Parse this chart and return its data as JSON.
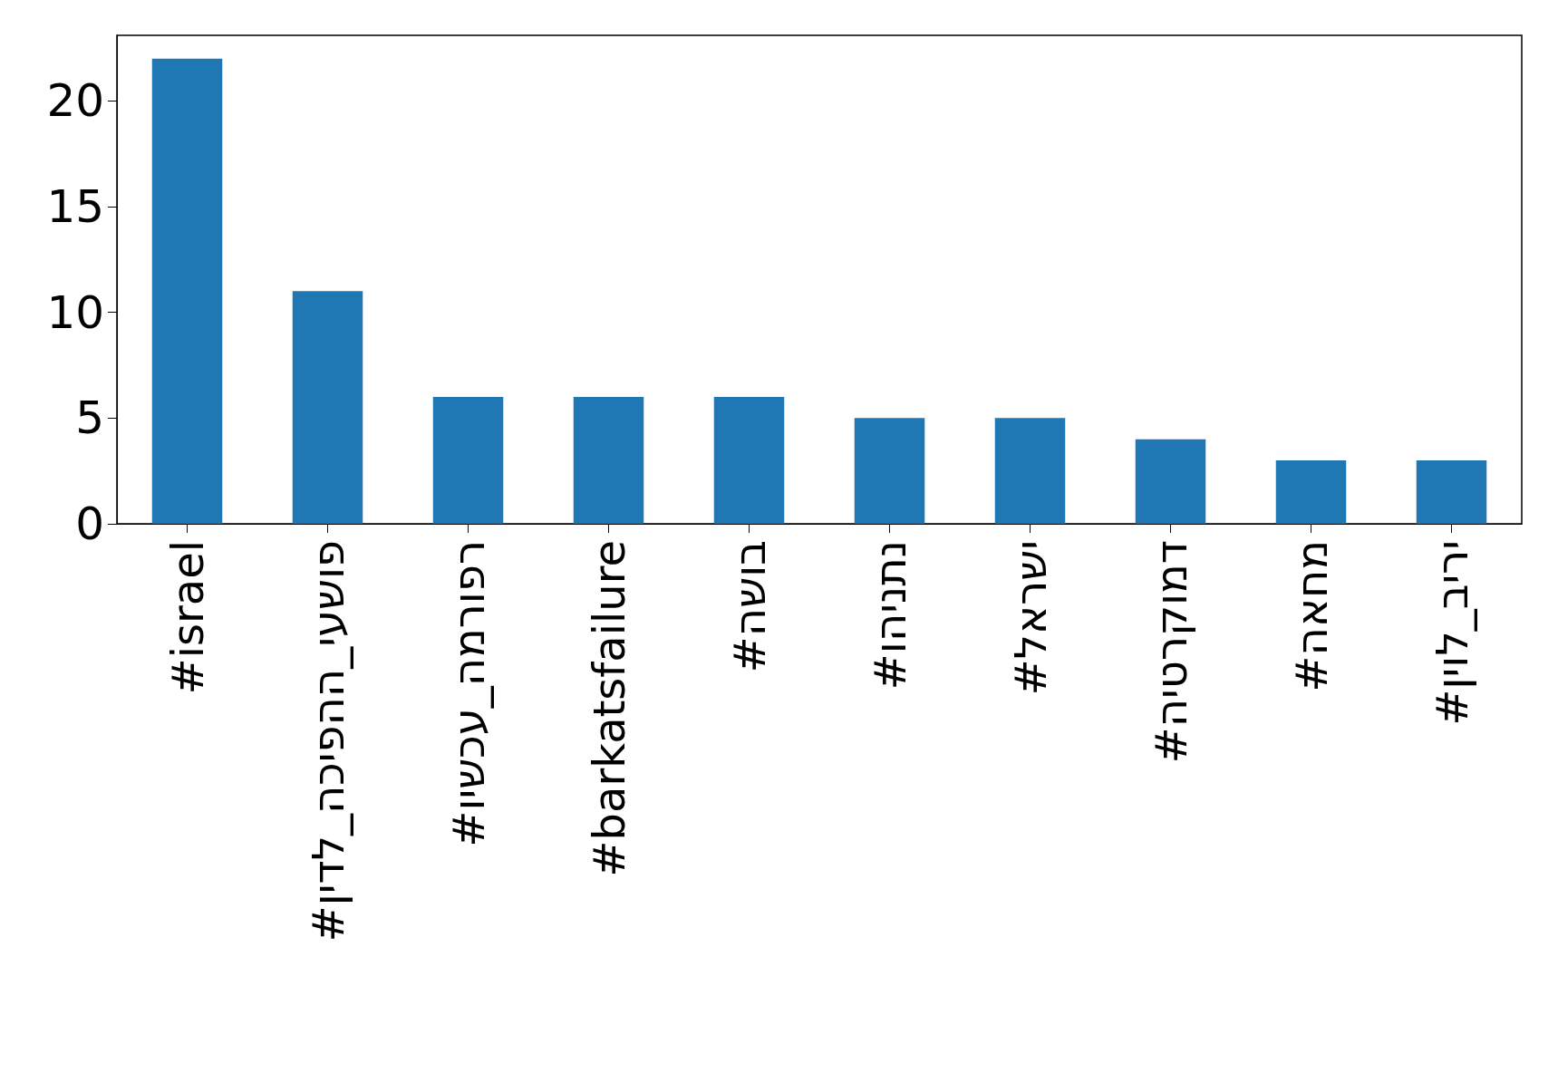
{
  "chart_data": {
    "type": "bar",
    "categories": [
      "#israel",
      "#פושעי_ההפיכה_לדין",
      "#רפורמה_עכשיו",
      "#barkatsfailure",
      "#בושה",
      "#נתניהו",
      "#ישראל",
      "#דמוקרטיה",
      "#מחאה",
      "#יריב_לוין"
    ],
    "values": [
      22,
      11,
      6,
      6,
      6,
      5,
      5,
      4,
      3,
      3
    ],
    "color": "#1f77b4",
    "ylim": [
      0,
      23.1
    ],
    "yticks": [
      0,
      5,
      10,
      15,
      20
    ],
    "grid": false
  }
}
